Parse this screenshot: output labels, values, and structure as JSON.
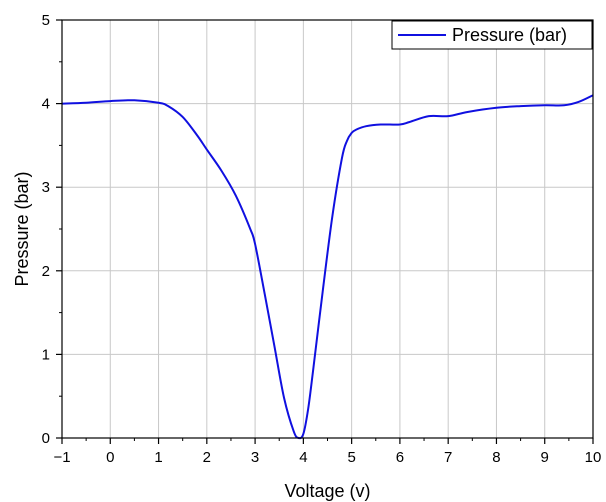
{
  "chart_data": {
    "type": "line",
    "title": "",
    "xlabel": "Voltage (v)",
    "ylabel": "Pressure (bar)",
    "xlim": [
      -1,
      10
    ],
    "ylim": [
      0,
      5
    ],
    "xticks": [
      "-1",
      "0",
      "1",
      "2",
      "3",
      "4",
      "5",
      "6",
      "7",
      "8",
      "9",
      "10"
    ],
    "yticks": [
      "0",
      "1",
      "2",
      "3",
      "4",
      "5"
    ],
    "grid": true,
    "legend_position": "top-right",
    "series": [
      {
        "name": "Pressure (bar)",
        "color": "#1010e0",
        "x": [
          -1,
          -0.5,
          0,
          0.5,
          1,
          1.2,
          1.5,
          1.8,
          2,
          2.3,
          2.6,
          2.9,
          3,
          3.2,
          3.4,
          3.6,
          3.8,
          3.9,
          4,
          4.1,
          4.2,
          4.4,
          4.6,
          4.8,
          4.9,
          5,
          5.1,
          5.3,
          5.6,
          6,
          6.2,
          6.6,
          7,
          7.4,
          8,
          8.5,
          9,
          9.4,
          9.7,
          10
        ],
        "y": [
          4.0,
          4.01,
          4.03,
          4.04,
          4.01,
          3.97,
          3.84,
          3.62,
          3.45,
          3.2,
          2.9,
          2.5,
          2.32,
          1.72,
          1.1,
          0.48,
          0.08,
          0.0,
          0.05,
          0.35,
          0.8,
          1.75,
          2.65,
          3.35,
          3.55,
          3.65,
          3.69,
          3.73,
          3.75,
          3.75,
          3.78,
          3.85,
          3.85,
          3.9,
          3.95,
          3.97,
          3.98,
          3.98,
          4.02,
          4.1
        ]
      }
    ]
  }
}
